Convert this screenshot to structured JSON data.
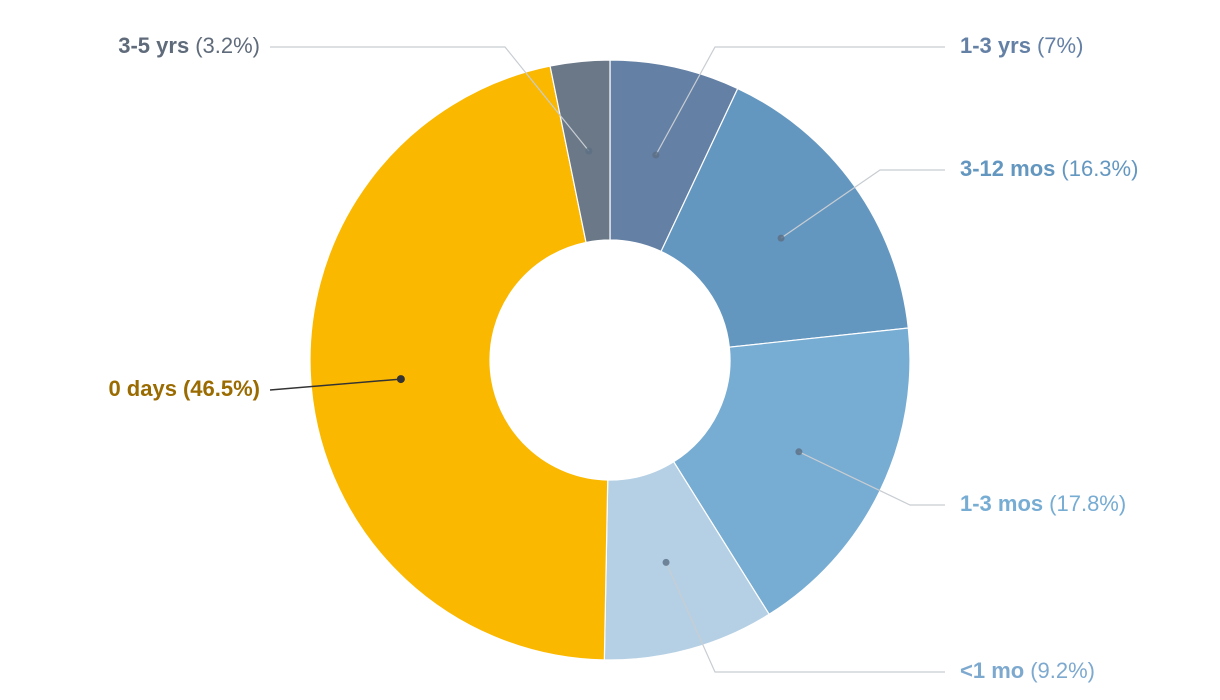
{
  "chart_data": {
    "type": "donut",
    "categories": [
      "1-3 yrs",
      "3-12 mos",
      "1-3 mos",
      "<1 mo",
      "0 days",
      "3-5 yrs"
    ],
    "values": [
      7,
      16.3,
      17.8,
      9.2,
      46.5,
      3.2
    ],
    "value_labels": [
      "(7%)",
      "(16.3%)",
      "(17.8%)",
      "(9.2%)",
      "(46.5%)",
      "(3.2%)"
    ],
    "colors": [
      "#6480a5",
      "#6497c0",
      "#77acd3",
      "#b5d0e4",
      "#fbb800",
      "#6a7888"
    ],
    "label_colors": [
      "#6480a5",
      "#6497c0",
      "#77acd3",
      "#7ea9cf",
      "#9a6b00",
      "#5f6b7a"
    ]
  }
}
